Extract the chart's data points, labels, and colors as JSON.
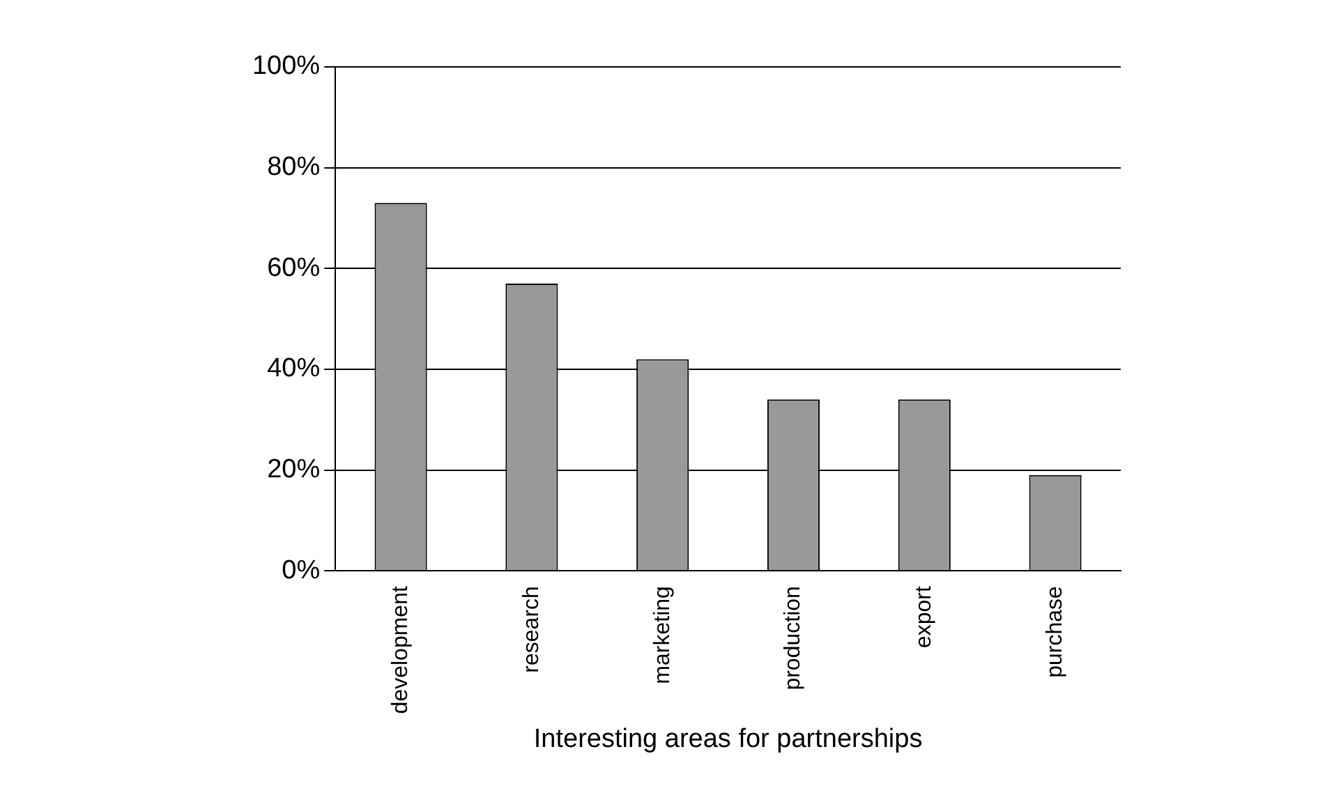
{
  "chart_data": {
    "type": "bar",
    "xlabel": "Interesting areas for partnerships",
    "categories": [
      "development",
      "research",
      "marketing",
      "production",
      "export",
      "purchase"
    ],
    "values": [
      73,
      57,
      42,
      34,
      34,
      19
    ],
    "color": "#999999",
    "ylim": [
      0,
      100
    ],
    "yticks": [
      {
        "value": 0,
        "label": "0%"
      },
      {
        "value": 20,
        "label": "20%"
      },
      {
        "value": 40,
        "label": "40%"
      },
      {
        "value": 60,
        "label": "60%"
      },
      {
        "value": 80,
        "label": "80%"
      },
      {
        "value": 100,
        "label": "100%"
      }
    ],
    "grid": "y",
    "legend": false
  }
}
